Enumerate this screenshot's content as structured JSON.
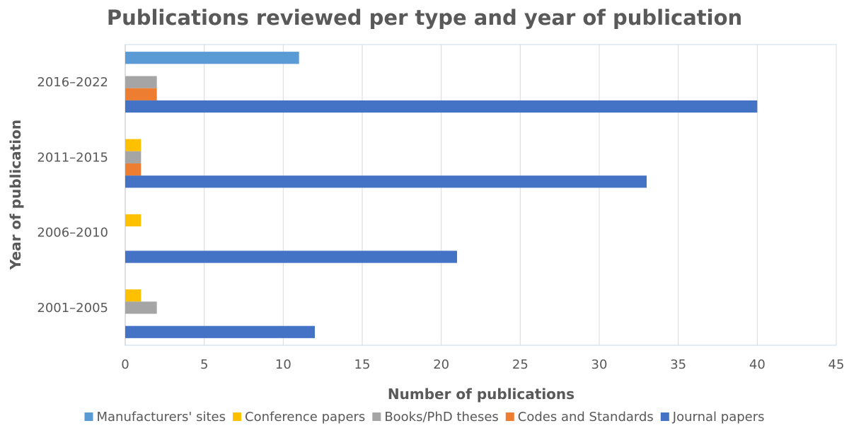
{
  "chart_data": {
    "type": "bar",
    "orientation": "horizontal",
    "title": "Publications reviewed per type and year of publication",
    "xlabel": "Number of publications",
    "ylabel": "Year of publication",
    "xlim": [
      0,
      45
    ],
    "xticks": [
      0,
      5,
      10,
      15,
      20,
      25,
      30,
      35,
      40,
      45
    ],
    "grid": true,
    "legend_position": "bottom",
    "categories": [
      "2001–2005",
      "2006–2010",
      "2011–2015",
      "2016–2022"
    ],
    "series": [
      {
        "name": "Manufacturers' sites",
        "color": "#5b9bd5",
        "values": [
          0,
          0,
          0,
          11
        ]
      },
      {
        "name": "Conference papers",
        "color": "#ffc000",
        "values": [
          1,
          1,
          1,
          0
        ]
      },
      {
        "name": "Books/PhD theses",
        "color": "#a5a5a5",
        "values": [
          2,
          0,
          1,
          2
        ]
      },
      {
        "name": "Codes and Standards",
        "color": "#ed7d31",
        "values": [
          0,
          0,
          1,
          2
        ]
      },
      {
        "name": "Journal papers",
        "color": "#4472c4",
        "values": [
          12,
          21,
          33,
          40
        ]
      }
    ]
  }
}
